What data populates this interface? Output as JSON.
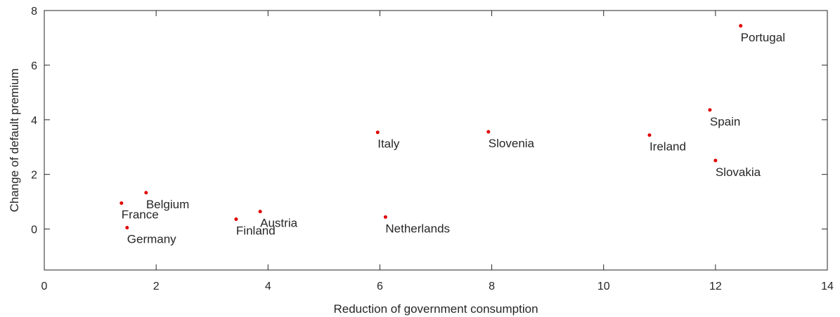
{
  "chart_data": {
    "type": "scatter",
    "x_label": "Reduction of government consumption",
    "y_label": "Change of default premium",
    "labels": [
      "Portugal",
      "Spain",
      "Ireland",
      "Slovakia",
      "Slovenia",
      "Italy",
      "Netherlands",
      "Austria",
      "Finland",
      "Belgium",
      "France",
      "Germany"
    ],
    "x": [
      12.45,
      11.9,
      10.82,
      12.0,
      7.94,
      5.96,
      6.1,
      3.86,
      3.43,
      1.82,
      1.38,
      1.48
    ],
    "values": [
      7.44,
      4.36,
      3.44,
      2.51,
      3.56,
      3.54,
      0.44,
      0.64,
      0.36,
      1.33,
      0.95,
      0.05
    ],
    "color": "#e00000",
    "xlim": [
      0,
      14
    ],
    "xticks": [
      0,
      2,
      4,
      6,
      8,
      10,
      12,
      14
    ],
    "ylim": [
      -1.5,
      8
    ],
    "yticks": [
      0,
      2,
      4,
      6,
      8
    ]
  }
}
